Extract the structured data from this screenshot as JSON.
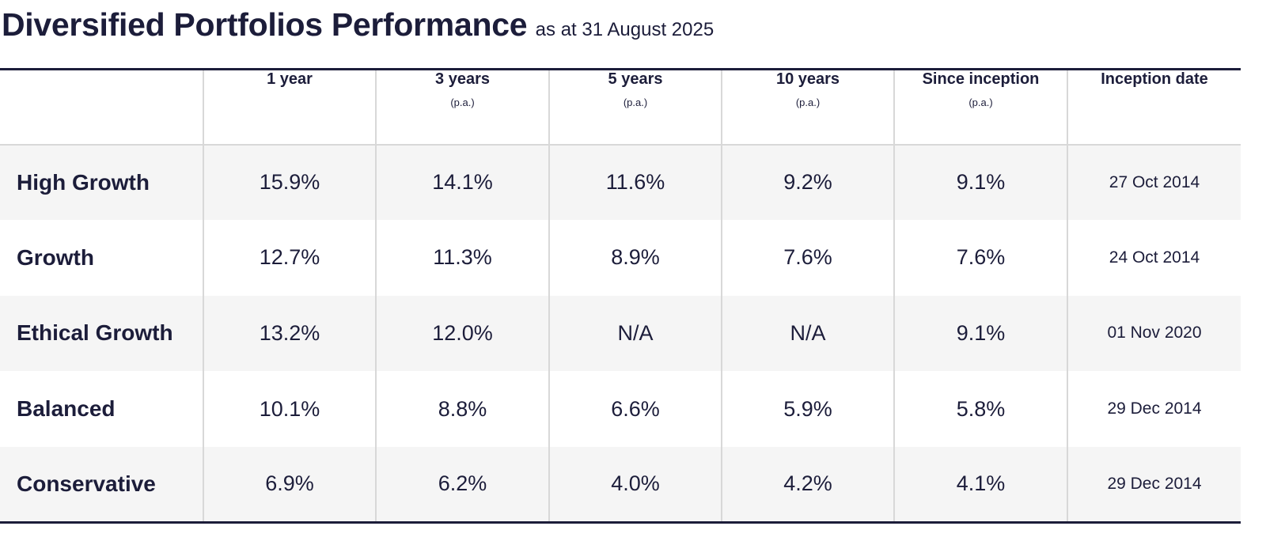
{
  "title": "Diversified Portfolios Performance",
  "subtitle": "as at 31 August 2025",
  "table": {
    "headers": [
      {
        "label": "",
        "note": ""
      },
      {
        "label": "1 year",
        "note": ""
      },
      {
        "label": "3 years",
        "note": "(p.a.)"
      },
      {
        "label": "5 years",
        "note": "(p.a.)"
      },
      {
        "label": "10 years",
        "note": "(p.a.)"
      },
      {
        "label": "Since inception",
        "note": "(p.a.)"
      },
      {
        "label": "Inception date",
        "note": ""
      }
    ],
    "rows": [
      {
        "name": "High Growth",
        "y1": "15.9%",
        "y3": "14.1%",
        "y5": "11.6%",
        "y10": "9.2%",
        "since": "9.1%",
        "date": "27 Oct 2014"
      },
      {
        "name": "Growth",
        "y1": "12.7%",
        "y3": "11.3%",
        "y5": "8.9%",
        "y10": "7.6%",
        "since": "7.6%",
        "date": "24 Oct 2014"
      },
      {
        "name": "Ethical Growth",
        "y1": "13.2%",
        "y3": "12.0%",
        "y5": "N/A",
        "y10": "N/A",
        "since": "9.1%",
        "date": "01 Nov 2020"
      },
      {
        "name": "Balanced",
        "y1": "10.1%",
        "y3": "8.8%",
        "y5": "6.6%",
        "y10": "5.9%",
        "since": "5.8%",
        "date": "29 Dec 2014"
      },
      {
        "name": "Conservative",
        "y1": "6.9%",
        "y3": "6.2%",
        "y5": "4.0%",
        "y10": "4.2%",
        "since": "4.1%",
        "date": "29 Dec 2014"
      }
    ]
  },
  "colors": {
    "text": "#1c1d3a",
    "rule": "#1c1d3a",
    "gridline": "#d8d8d8",
    "stripe": "#f5f5f5"
  }
}
